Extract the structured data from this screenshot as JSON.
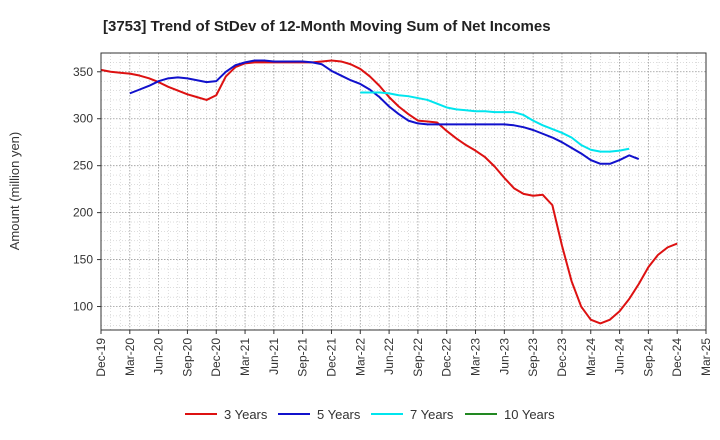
{
  "chart_data": {
    "type": "line",
    "title": "[3753]  Trend of StDev of 12-Month Moving Sum of Net Incomes",
    "ylabel": "Amount (million yen)",
    "xlabel": "",
    "ylim": [
      75,
      370
    ],
    "yticks": [
      100,
      150,
      200,
      250,
      300,
      350
    ],
    "x_start": "Dec-19",
    "x_end": "Mar-25",
    "xticks": [
      "Dec-19",
      "Mar-20",
      "Jun-20",
      "Sep-20",
      "Dec-20",
      "Mar-21",
      "Jun-21",
      "Sep-21",
      "Dec-21",
      "Mar-22",
      "Jun-22",
      "Sep-22",
      "Dec-22",
      "Mar-23",
      "Jun-23",
      "Sep-23",
      "Dec-23",
      "Mar-24",
      "Jun-24",
      "Sep-24",
      "Dec-24",
      "Mar-25"
    ],
    "grid": true,
    "legend_position": "bottom",
    "series": [
      {
        "name": "3 Years",
        "color": "#dd1111",
        "start": "Dec-19",
        "values": [
          352,
          350,
          349,
          348,
          346,
          343,
          339,
          334,
          330,
          326,
          323,
          320,
          325,
          345,
          355,
          359,
          360,
          360,
          360,
          360,
          360,
          360,
          360,
          361,
          362,
          361,
          358,
          353,
          345,
          335,
          323,
          313,
          305,
          298,
          297,
          296,
          287,
          279,
          272,
          266,
          259,
          249,
          237,
          226,
          220,
          218,
          219,
          208,
          165,
          127,
          100,
          86,
          82,
          86,
          95,
          108,
          124,
          142,
          155,
          163,
          167
        ]
      },
      {
        "name": "5 Years",
        "color": "#1111cc",
        "start": "Mar-20",
        "values": [
          327,
          331,
          335,
          340,
          343,
          344,
          343,
          341,
          339,
          340,
          350,
          357,
          360,
          362,
          362,
          361,
          361,
          361,
          361,
          360,
          358,
          351,
          346,
          341,
          337,
          331,
          323,
          313,
          305,
          298,
          295,
          294,
          294,
          294,
          294,
          294,
          294,
          294,
          294,
          294,
          293,
          291,
          288,
          284,
          280,
          275,
          269,
          263,
          256,
          252,
          252,
          256,
          261,
          257
        ]
      },
      {
        "name": "7 Years",
        "color": "#00e5ee",
        "start": "Mar-22",
        "values": [
          328,
          328,
          328,
          327,
          325,
          324,
          322,
          320,
          316,
          312,
          310,
          309,
          308,
          308,
          307,
          307,
          307,
          304,
          298,
          293,
          289,
          285,
          280,
          272,
          267,
          265,
          265,
          266,
          268
        ]
      },
      {
        "name": "10 Years",
        "color": "#228822",
        "start": "Dec-24",
        "values": []
      }
    ]
  }
}
